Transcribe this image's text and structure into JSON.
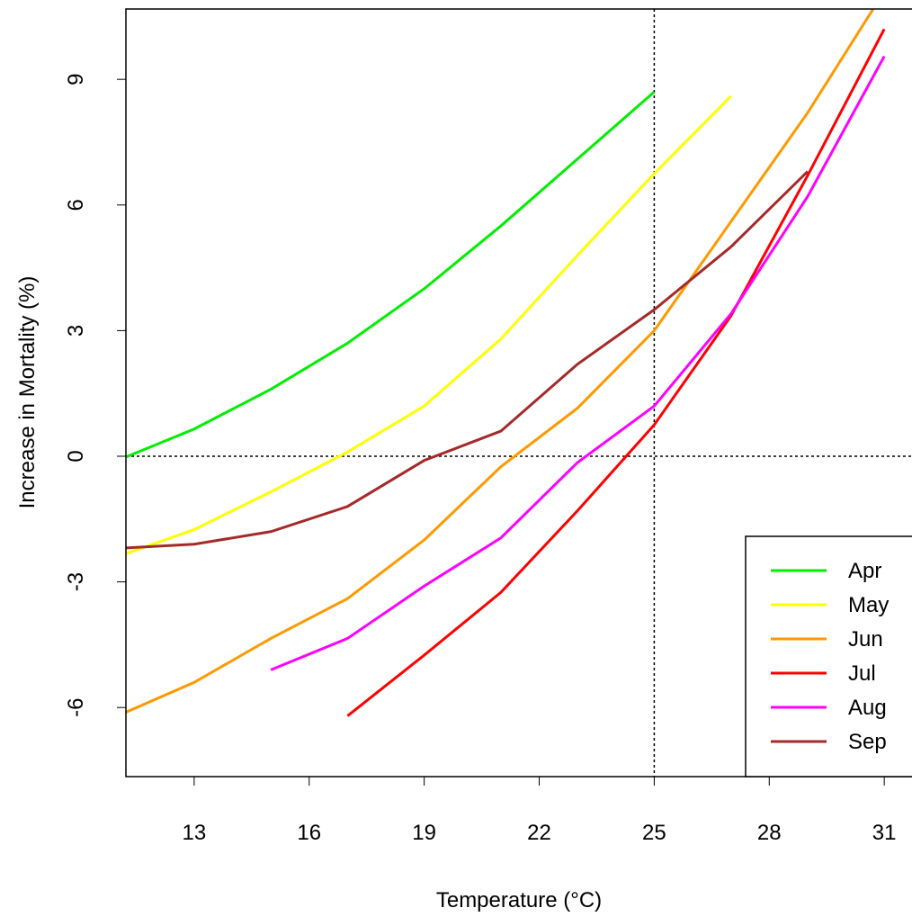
{
  "chart_data": {
    "type": "line",
    "x_label": "Temperature (°C)",
    "y_label": "Increase in Mortality (%)",
    "x": [
      11,
      13,
      15,
      17,
      19,
      21,
      23,
      25,
      27,
      29,
      31
    ],
    "series": [
      {
        "name": "Apr",
        "color": "#00ee00",
        "values": [
          -0.1,
          0.65,
          1.6,
          2.7,
          4.0,
          5.5,
          7.1,
          8.7,
          null,
          null,
          null
        ]
      },
      {
        "name": "May",
        "color": "#ffff00",
        "values": [
          -2.4,
          -1.75,
          -0.85,
          0.1,
          1.2,
          2.8,
          4.8,
          6.75,
          8.6,
          null,
          null
        ]
      },
      {
        "name": "Jun",
        "color": "#ff9900",
        "values": [
          -6.2,
          -5.4,
          -4.35,
          -3.4,
          -2.0,
          -0.25,
          1.15,
          3.0,
          5.6,
          8.2,
          11.1
        ]
      },
      {
        "name": "Jul",
        "color": "#ff0000",
        "values": [
          null,
          null,
          null,
          -6.2,
          -4.75,
          -3.25,
          -1.3,
          0.75,
          3.35,
          6.7,
          10.2
        ]
      },
      {
        "name": "Aug",
        "color": "#ff00ff",
        "values": [
          null,
          null,
          -5.1,
          -4.35,
          -3.1,
          -1.95,
          -0.15,
          1.2,
          3.4,
          6.2,
          9.55
        ]
      },
      {
        "name": "Sep",
        "color": "#a52a2a",
        "values": [
          -2.2,
          -2.1,
          -1.8,
          -1.2,
          -0.1,
          0.6,
          2.2,
          3.5,
          5.0,
          6.8,
          null
        ]
      }
    ],
    "xlim": [
      11.22,
      31.7
    ],
    "ylim": [
      -7.65,
      10.68
    ],
    "xticks": [
      13,
      16,
      19,
      22,
      25,
      28,
      31
    ],
    "yticks": [
      -6,
      -3,
      0,
      3,
      6,
      9
    ],
    "reference_lines": {
      "x": 25,
      "y": 0
    },
    "legend": "bottom-right"
  }
}
